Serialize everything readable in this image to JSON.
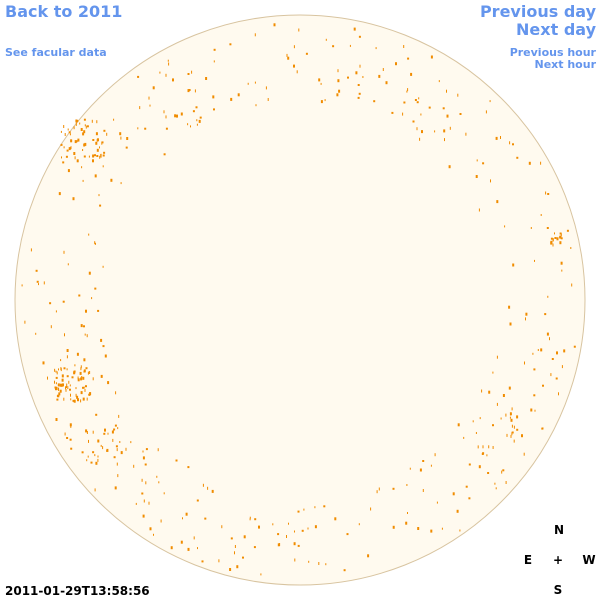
{
  "nav": {
    "back": "Back to 2011",
    "facular": "See facular data",
    "previous_day": "Previous day",
    "next_day": "Next day",
    "previous_hour": "Previous hour",
    "next_hour": "Next hour"
  },
  "timestamp": "2011-01-29T13:58:56",
  "compass": {
    "north": "N",
    "east": "E",
    "center": "+",
    "west": "W",
    "south": "S"
  }
}
